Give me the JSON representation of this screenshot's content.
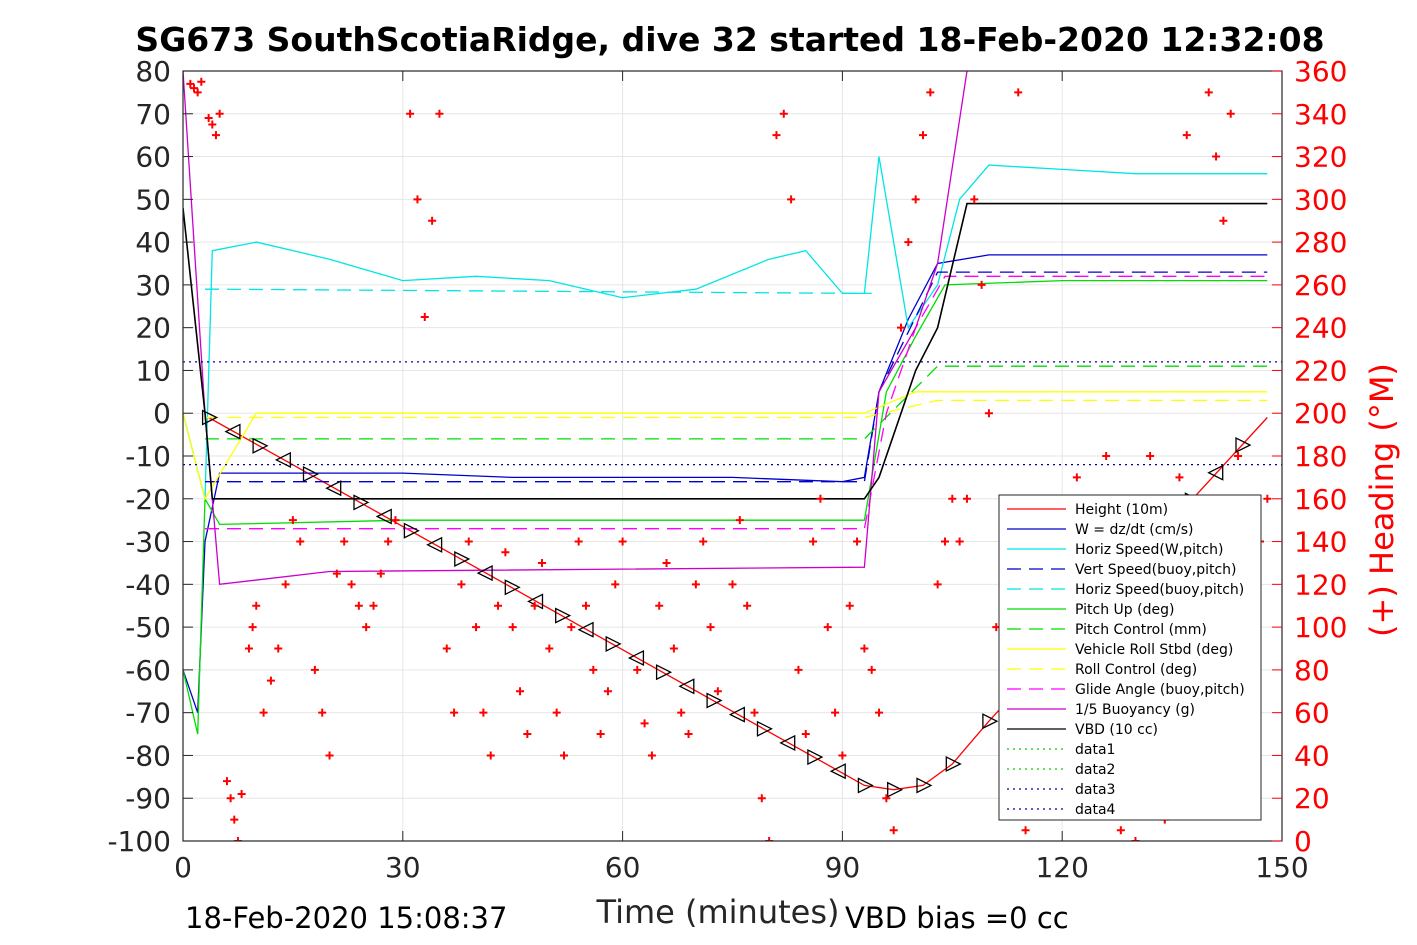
{
  "chart_data": {
    "type": "line",
    "title": "SG673 SouthScotiaRidge, dive 32 started 18-Feb-2020 12:32:08",
    "xlabel": "Time (minutes)",
    "ylabel": "",
    "ylabel_right": "(+) Heading (°M)",
    "xlim": [
      0,
      150
    ],
    "ylim": [
      -100,
      80
    ],
    "ylim_right": [
      0,
      360
    ],
    "x_ticks": [
      "0",
      "30",
      "60",
      "90",
      "120",
      "150"
    ],
    "y_ticks": [
      "80",
      "70",
      "60",
      "50",
      "40",
      "30",
      "20",
      "10",
      "0",
      "-10",
      "-20",
      "-30",
      "-40",
      "-50",
      "-60",
      "-70",
      "-80",
      "-90",
      "-100"
    ],
    "y_ticks_right": [
      "360",
      "340",
      "320",
      "300",
      "280",
      "260",
      "240",
      "220",
      "200",
      "180",
      "160",
      "140",
      "120",
      "100",
      "80",
      "60",
      "40",
      "20",
      "0"
    ],
    "grid": true,
    "legend_position": "bottom-right",
    "footer_left": "18-Feb-2020 15:08:37",
    "footer_right": "VBD bias =0 cc",
    "colors": {
      "height": "#ff0000",
      "w": "#0000cc",
      "horiz": "#00e5e5",
      "pitch": "#00dd00",
      "roll": "#ffff00",
      "glide": "#ff00ff",
      "buoy": "#cc00cc",
      "vbd": "#000000",
      "data_green": "#00cc00",
      "data_blue": "#000099",
      "heading": "#ff0000"
    },
    "series": [
      {
        "name": "Height (10m)",
        "style": "solid",
        "color": "#ff0000",
        "x": [
          3.5,
          93,
          97,
          101,
          105,
          110,
          148
        ],
        "y": [
          -1,
          -87,
          -88,
          -87,
          -82,
          -72,
          -1
        ]
      },
      {
        "name": "W = dz/dt (cm/s)",
        "style": "solid",
        "color": "#0000cc",
        "x": [
          0,
          2,
          3,
          5,
          15,
          30,
          45,
          60,
          75,
          90,
          93,
          95,
          99,
          103,
          110,
          120,
          130,
          140,
          148
        ],
        "y": [
          -60,
          -70,
          -30,
          -14,
          -14,
          -14,
          -15,
          -15,
          -15,
          -16,
          -15,
          5,
          22,
          35,
          37,
          37,
          37,
          37,
          37
        ]
      },
      {
        "name": "Horiz Speed(W,pitch)",
        "style": "solid",
        "color": "#00e5e5",
        "x": [
          0,
          3,
          4,
          10,
          20,
          30,
          40,
          50,
          60,
          70,
          80,
          85,
          90,
          93,
          95,
          99,
          103,
          106,
          110,
          120,
          130,
          140,
          148
        ],
        "y": [
          0,
          -20,
          38,
          40,
          36,
          31,
          32,
          31,
          27,
          29,
          36,
          38,
          28,
          28,
          60,
          20,
          30,
          50,
          58,
          57,
          56,
          56,
          56
        ]
      },
      {
        "name": "Vert Speed(buoy,pitch)",
        "style": "dashed",
        "color": "#0000cc",
        "x": [
          3,
          93,
          95,
          103,
          148
        ],
        "y": [
          -16,
          -16,
          5,
          33,
          33
        ]
      },
      {
        "name": "Horiz Speed(buoy,pitch)",
        "style": "dashed",
        "color": "#00e5e5",
        "x": [
          3,
          5,
          93,
          94
        ],
        "y": [
          29,
          29,
          28,
          28
        ]
      },
      {
        "name": "Pitch Up (deg)",
        "style": "solid",
        "color": "#00dd00",
        "x": [
          0,
          2,
          3,
          5,
          30,
          60,
          90,
          93,
          96,
          100,
          104,
          120,
          148
        ],
        "y": [
          -60,
          -75,
          -20,
          -26,
          -25,
          -25,
          -25,
          -25,
          5,
          18,
          30,
          31,
          31
        ]
      },
      {
        "name": "Pitch Control (mm)",
        "style": "dashed",
        "color": "#00dd00",
        "x": [
          3,
          93,
          103,
          148
        ],
        "y": [
          -6,
          -6,
          11,
          11
        ]
      },
      {
        "name": "Vehicle Roll Stbd (deg)",
        "style": "solid",
        "color": "#ffff00",
        "x": [
          0,
          3,
          10,
          30,
          60,
          90,
          93,
          100,
          120,
          148
        ],
        "y": [
          0,
          -20,
          0,
          0,
          0,
          0,
          0,
          5,
          5,
          5
        ]
      },
      {
        "name": "Roll Control (deg)",
        "style": "dashed",
        "color": "#ffff00",
        "x": [
          3,
          93,
          103,
          148
        ],
        "y": [
          -1,
          -1,
          3,
          3
        ]
      },
      {
        "name": "Glide Angle (buoy,pitch)",
        "style": "dashed",
        "color": "#ff00ff",
        "x": [
          3,
          93,
          96,
          100,
          104,
          148
        ],
        "y": [
          -27,
          -27,
          0,
          20,
          32,
          32
        ]
      },
      {
        "name": "1/5 Buoyancy (g)",
        "style": "solid",
        "color": "#cc00cc",
        "x": [
          0,
          3,
          5,
          20,
          93,
          95,
          100,
          103,
          107
        ],
        "y": [
          80,
          0,
          -40,
          -37,
          -36,
          5,
          20,
          35,
          80
        ]
      },
      {
        "name": "VBD (10 cc)",
        "style": "solid",
        "color": "#000000",
        "x": [
          0,
          3,
          4,
          93,
          95,
          100,
          103,
          107,
          148
        ],
        "y": [
          48,
          0,
          -20,
          -20,
          -15,
          10,
          20,
          49,
          49
        ]
      },
      {
        "name": "data1",
        "style": "dotted",
        "color": "#00cc00",
        "x": [],
        "y": []
      },
      {
        "name": "data2",
        "style": "dotted",
        "color": "#00cc00",
        "x": [],
        "y": []
      },
      {
        "name": "data3",
        "style": "dotted",
        "color": "#000099",
        "x": [
          0,
          150
        ],
        "y": [
          12,
          12
        ]
      },
      {
        "name": "data4",
        "style": "dotted",
        "color": "#000099",
        "x": [
          0,
          150
        ],
        "y": [
          -12,
          -12
        ]
      }
    ],
    "heading_marker": "+",
    "heading_points": [
      [
        1,
        354
      ],
      [
        1.5,
        352
      ],
      [
        2,
        350
      ],
      [
        2.5,
        355
      ],
      [
        3.5,
        338
      ],
      [
        4,
        335
      ],
      [
        4.5,
        330
      ],
      [
        5,
        340
      ],
      [
        6,
        28
      ],
      [
        6.5,
        20
      ],
      [
        7,
        10
      ],
      [
        7.5,
        0
      ],
      [
        8,
        22
      ],
      [
        9,
        90
      ],
      [
        9.5,
        100
      ],
      [
        10,
        110
      ],
      [
        11,
        60
      ],
      [
        12,
        75
      ],
      [
        13,
        90
      ],
      [
        14,
        120
      ],
      [
        15,
        150
      ],
      [
        16,
        140
      ],
      [
        18,
        80
      ],
      [
        19,
        60
      ],
      [
        20,
        40
      ],
      [
        21,
        125
      ],
      [
        22,
        140
      ],
      [
        23,
        120
      ],
      [
        24,
        110
      ],
      [
        25,
        100
      ],
      [
        26,
        110
      ],
      [
        27,
        125
      ],
      [
        28,
        140
      ],
      [
        29,
        150
      ],
      [
        31,
        340
      ],
      [
        32,
        300
      ],
      [
        33,
        245
      ],
      [
        34,
        290
      ],
      [
        35,
        340
      ],
      [
        36,
        90
      ],
      [
        37,
        60
      ],
      [
        38,
        120
      ],
      [
        39,
        140
      ],
      [
        40,
        100
      ],
      [
        41,
        60
      ],
      [
        42,
        40
      ],
      [
        43,
        110
      ],
      [
        44,
        135
      ],
      [
        45,
        100
      ],
      [
        46,
        70
      ],
      [
        47,
        50
      ],
      [
        48,
        110
      ],
      [
        49,
        130
      ],
      [
        50,
        90
      ],
      [
        51,
        60
      ],
      [
        52,
        40
      ],
      [
        53,
        100
      ],
      [
        54,
        140
      ],
      [
        55,
        110
      ],
      [
        56,
        80
      ],
      [
        57,
        50
      ],
      [
        58,
        70
      ],
      [
        59,
        120
      ],
      [
        60,
        140
      ],
      [
        62,
        80
      ],
      [
        63,
        55
      ],
      [
        64,
        40
      ],
      [
        65,
        110
      ],
      [
        66,
        130
      ],
      [
        67,
        90
      ],
      [
        68,
        60
      ],
      [
        69,
        50
      ],
      [
        70,
        120
      ],
      [
        71,
        140
      ],
      [
        72,
        100
      ],
      [
        73,
        70
      ],
      [
        75,
        120
      ],
      [
        76,
        150
      ],
      [
        77,
        110
      ],
      [
        78,
        60
      ],
      [
        79,
        20
      ],
      [
        80,
        0
      ],
      [
        81,
        330
      ],
      [
        82,
        340
      ],
      [
        83,
        300
      ],
      [
        84,
        80
      ],
      [
        85,
        50
      ],
      [
        86,
        140
      ],
      [
        87,
        160
      ],
      [
        88,
        100
      ],
      [
        89,
        60
      ],
      [
        90,
        40
      ],
      [
        91,
        110
      ],
      [
        92,
        140
      ],
      [
        93,
        90
      ],
      [
        94,
        80
      ],
      [
        95,
        60
      ],
      [
        96,
        20
      ],
      [
        97,
        5
      ],
      [
        98,
        240
      ],
      [
        99,
        280
      ],
      [
        100,
        300
      ],
      [
        101,
        330
      ],
      [
        102,
        350
      ],
      [
        103,
        120
      ],
      [
        104,
        140
      ],
      [
        105,
        160
      ],
      [
        106,
        140
      ],
      [
        107,
        160
      ],
      [
        108,
        300
      ],
      [
        109,
        260
      ],
      [
        110,
        200
      ],
      [
        111,
        100
      ],
      [
        112,
        60
      ],
      [
        113,
        20
      ],
      [
        114,
        350
      ],
      [
        115,
        5
      ],
      [
        118,
        40
      ],
      [
        122,
        170
      ],
      [
        126,
        180
      ],
      [
        128,
        5
      ],
      [
        130,
        0
      ],
      [
        132,
        180
      ],
      [
        134,
        10
      ],
      [
        136,
        170
      ],
      [
        137,
        330
      ],
      [
        140,
        350
      ],
      [
        141,
        320
      ],
      [
        142,
        290
      ],
      [
        143,
        340
      ],
      [
        144,
        180
      ],
      [
        145,
        150
      ],
      [
        146,
        160
      ],
      [
        147,
        140
      ],
      [
        148,
        160
      ]
    ]
  }
}
